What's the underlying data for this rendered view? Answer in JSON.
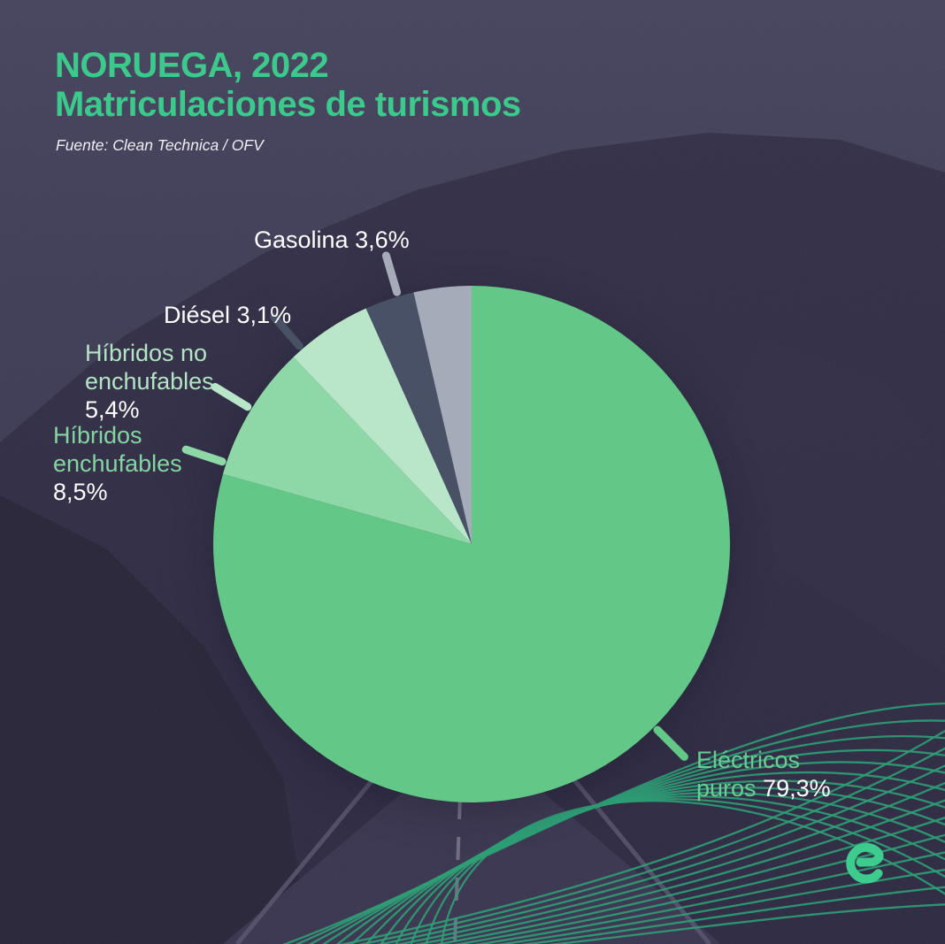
{
  "header": {
    "title_line1": "NORUEGA, 2022",
    "title_line2": "Matriculaciones de turismos",
    "source": "Fuente: Clean Technica / OFV"
  },
  "chart_data": {
    "type": "pie",
    "title": "NORUEGA, 2022 — Matriculaciones de turismos",
    "unit": "%",
    "start_angle_deg": 0,
    "direction": "clockwise",
    "legend_position": "outside-callouts",
    "slices": [
      {
        "label": "Eléctricos puros",
        "value": 79.3,
        "display": "79,3%",
        "color": "#63c787",
        "label_color": "#68cd92",
        "tick_angle_deg": 135.0
      },
      {
        "label": "Híbridos enchufables",
        "value": 8.5,
        "display": "8,5%",
        "color": "#8ed8a7",
        "label_color": "#84d5a1",
        "tick_angle_deg": 288.3
      },
      {
        "label": "Híbridos no enchufables",
        "value": 5.4,
        "display": "5,4%",
        "color": "#b9e5c8",
        "label_color": "#b5e3c5",
        "tick_angle_deg": 301.5
      },
      {
        "label": "Diésel",
        "value": 3.1,
        "display": "3,1%",
        "color": "#485166",
        "label_color": "#f7f7fa",
        "tick_angle_deg": 319.0
      },
      {
        "label": "Gasolina",
        "value": 3.6,
        "display": "3,6%",
        "color": "#a6abba",
        "label_color": "#f7f7fa",
        "tick_angle_deg": 343.5
      }
    ]
  },
  "annotations": {
    "gasolina": {
      "text": "Gasolina 3,6%"
    },
    "diesel": {
      "text": "Diésel 3,1%"
    },
    "hibridos_no": {
      "name1": "Híbridos no",
      "name2": "enchufables",
      "value": "5,4%"
    },
    "hibridos_ench": {
      "name1": "Híbridos",
      "name2": "enchufables",
      "value": "8,5%"
    },
    "electricos": {
      "name1": "Eléctricos",
      "name2": "puros",
      "value": "79,3%"
    }
  },
  "logo": {
    "letter": "e",
    "color": "#3ecb8e"
  },
  "colors": {
    "title_green": "#3bca8c",
    "text_white": "#ffffff",
    "background_sky": "#403d56",
    "background_mountain": "#2e2b41",
    "background_hill": "#282438",
    "road": "#38344e",
    "road_lines": "#56526c",
    "wave_green": "#2f9e76"
  }
}
